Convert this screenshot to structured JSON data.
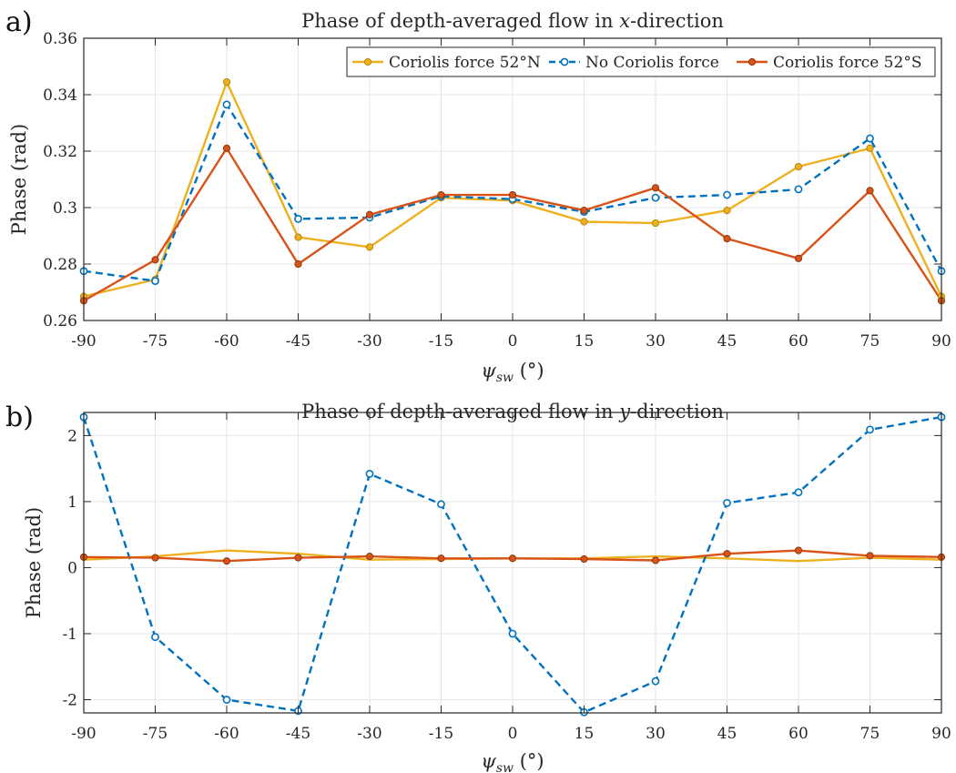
{
  "colors": {
    "north": "#EDB120",
    "none": "#0072BD",
    "south": "#D95319",
    "grid": "#e6e6e6",
    "axis": "#262626"
  },
  "chart_data": [
    {
      "panel_label": "a)",
      "type": "line",
      "title_prefix": "Phase of depth-averaged flow in ",
      "title_var": "x",
      "title_suffix": "-direction",
      "ylabel": "Phase (rad)",
      "xlabel_symbol": "ψ",
      "xlabel_sub": "sw",
      "xlabel_unit": " (°)",
      "x": [
        -90,
        -75,
        -60,
        -45,
        -30,
        -15,
        0,
        15,
        30,
        45,
        60,
        75,
        90
      ],
      "x_ticks": [
        "-90",
        "-75",
        "-60",
        "-45",
        "-30",
        "-15",
        "0",
        "15",
        "30",
        "45",
        "60",
        "75",
        "90"
      ],
      "xlim": [
        -90,
        90
      ],
      "ylim": [
        0.26,
        0.36
      ],
      "y_ticks": [
        0.26,
        0.28,
        0.3,
        0.32,
        0.34,
        0.36
      ],
      "y_tick_labels": [
        "0.26",
        "0.28",
        "0.3",
        "0.32",
        "0.34",
        "0.36"
      ],
      "grid": true,
      "legend": "top-right-horizontal",
      "series": [
        {
          "key": "north",
          "name": "Coriolis force 52°N",
          "style": "solid",
          "marker": "filled",
          "values": [
            0.2685,
            0.2745,
            0.3445,
            0.2895,
            0.286,
            0.3035,
            0.3025,
            0.295,
            0.2945,
            0.299,
            0.3145,
            0.321,
            0.2685
          ]
        },
        {
          "key": "none",
          "name": "No Coriolis force",
          "style": "dashed",
          "marker": "open",
          "values": [
            0.2775,
            0.274,
            0.3365,
            0.296,
            0.2965,
            0.304,
            0.303,
            0.2985,
            0.3035,
            0.3045,
            0.3065,
            0.3245,
            0.2775
          ]
        },
        {
          "key": "south",
          "name": "Coriolis force 52°S",
          "style": "solid",
          "marker": "filled",
          "values": [
            0.267,
            0.2815,
            0.321,
            0.28,
            0.2975,
            0.3045,
            0.3045,
            0.299,
            0.307,
            0.289,
            0.282,
            0.306,
            0.267
          ]
        }
      ]
    },
    {
      "panel_label": "b)",
      "type": "line",
      "title_prefix": "Phase of depth-averaged flow in ",
      "title_var": "y",
      "title_suffix": "-direction",
      "ylabel": "Phase (rad)",
      "xlabel_symbol": "ψ",
      "xlabel_sub": "sw",
      "xlabel_unit": " (°)",
      "x": [
        -90,
        -75,
        -60,
        -45,
        -30,
        -15,
        0,
        15,
        30,
        45,
        60,
        75,
        90
      ],
      "x_ticks": [
        "-90",
        "-75",
        "-60",
        "-45",
        "-30",
        "-15",
        "0",
        "15",
        "30",
        "45",
        "60",
        "75",
        "90"
      ],
      "xlim": [
        -90,
        90
      ],
      "ylim": [
        -2.2,
        2.35
      ],
      "y_ticks": [
        -2,
        -1,
        0,
        1,
        2
      ],
      "y_tick_labels": [
        "-2",
        "-1",
        "0",
        "1",
        "2"
      ],
      "grid": true,
      "legend": "none",
      "series": [
        {
          "key": "north",
          "name": "Coriolis force 52°N",
          "style": "solid",
          "marker": "none",
          "values": [
            0.12,
            0.17,
            0.26,
            0.21,
            0.12,
            0.13,
            0.14,
            0.14,
            0.17,
            0.14,
            0.1,
            0.15,
            0.12
          ]
        },
        {
          "key": "none",
          "name": "No Coriolis force",
          "style": "dashed",
          "marker": "open",
          "values": [
            2.28,
            -1.05,
            -2.0,
            -2.17,
            1.42,
            0.96,
            -1.0,
            -2.19,
            -1.72,
            0.98,
            1.14,
            2.09,
            2.28
          ]
        },
        {
          "key": "south",
          "name": "Coriolis force 52°S",
          "style": "solid",
          "marker": "filled",
          "values": [
            0.16,
            0.15,
            0.1,
            0.15,
            0.17,
            0.14,
            0.14,
            0.13,
            0.11,
            0.21,
            0.26,
            0.18,
            0.16
          ]
        }
      ]
    }
  ]
}
